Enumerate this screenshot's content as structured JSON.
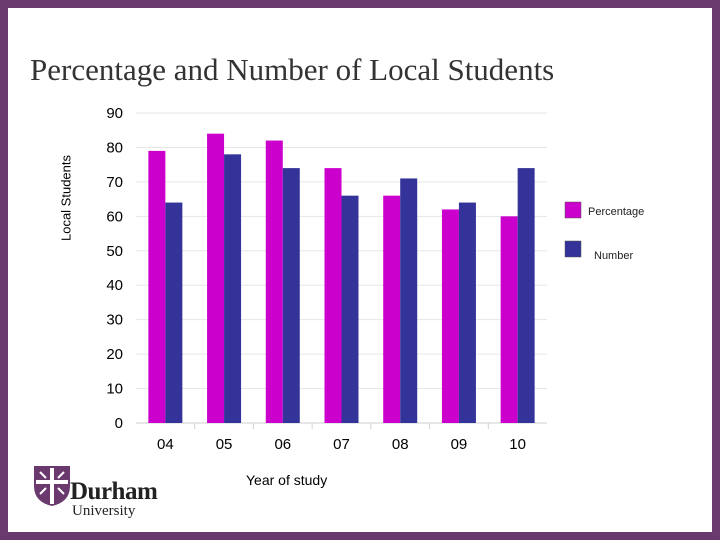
{
  "slide": {
    "title": "Percentage and Number of Local Students",
    "border_color": "#6a3a6e"
  },
  "logo": {
    "name": "Durham",
    "sub": "University",
    "crest_color": "#6a3a6e"
  },
  "chart_data": {
    "type": "bar",
    "title": "Percentage and Number of Local Students",
    "xlabel": "Year of study",
    "ylabel": "Local Students",
    "categories": [
      "04",
      "05",
      "06",
      "07",
      "08",
      "09",
      "10"
    ],
    "series": [
      {
        "name": "Percentage",
        "color": "#cc00cc",
        "values": [
          79,
          84,
          82,
          74,
          66,
          62,
          60
        ]
      },
      {
        "name": "Number",
        "color": "#333399",
        "values": [
          64,
          78,
          74,
          66,
          71,
          64,
          74
        ]
      }
    ],
    "ylim": [
      0,
      90
    ],
    "yticks": [
      0,
      10,
      20,
      30,
      40,
      50,
      60,
      70,
      80,
      90
    ],
    "grid": true,
    "legend": "right"
  }
}
